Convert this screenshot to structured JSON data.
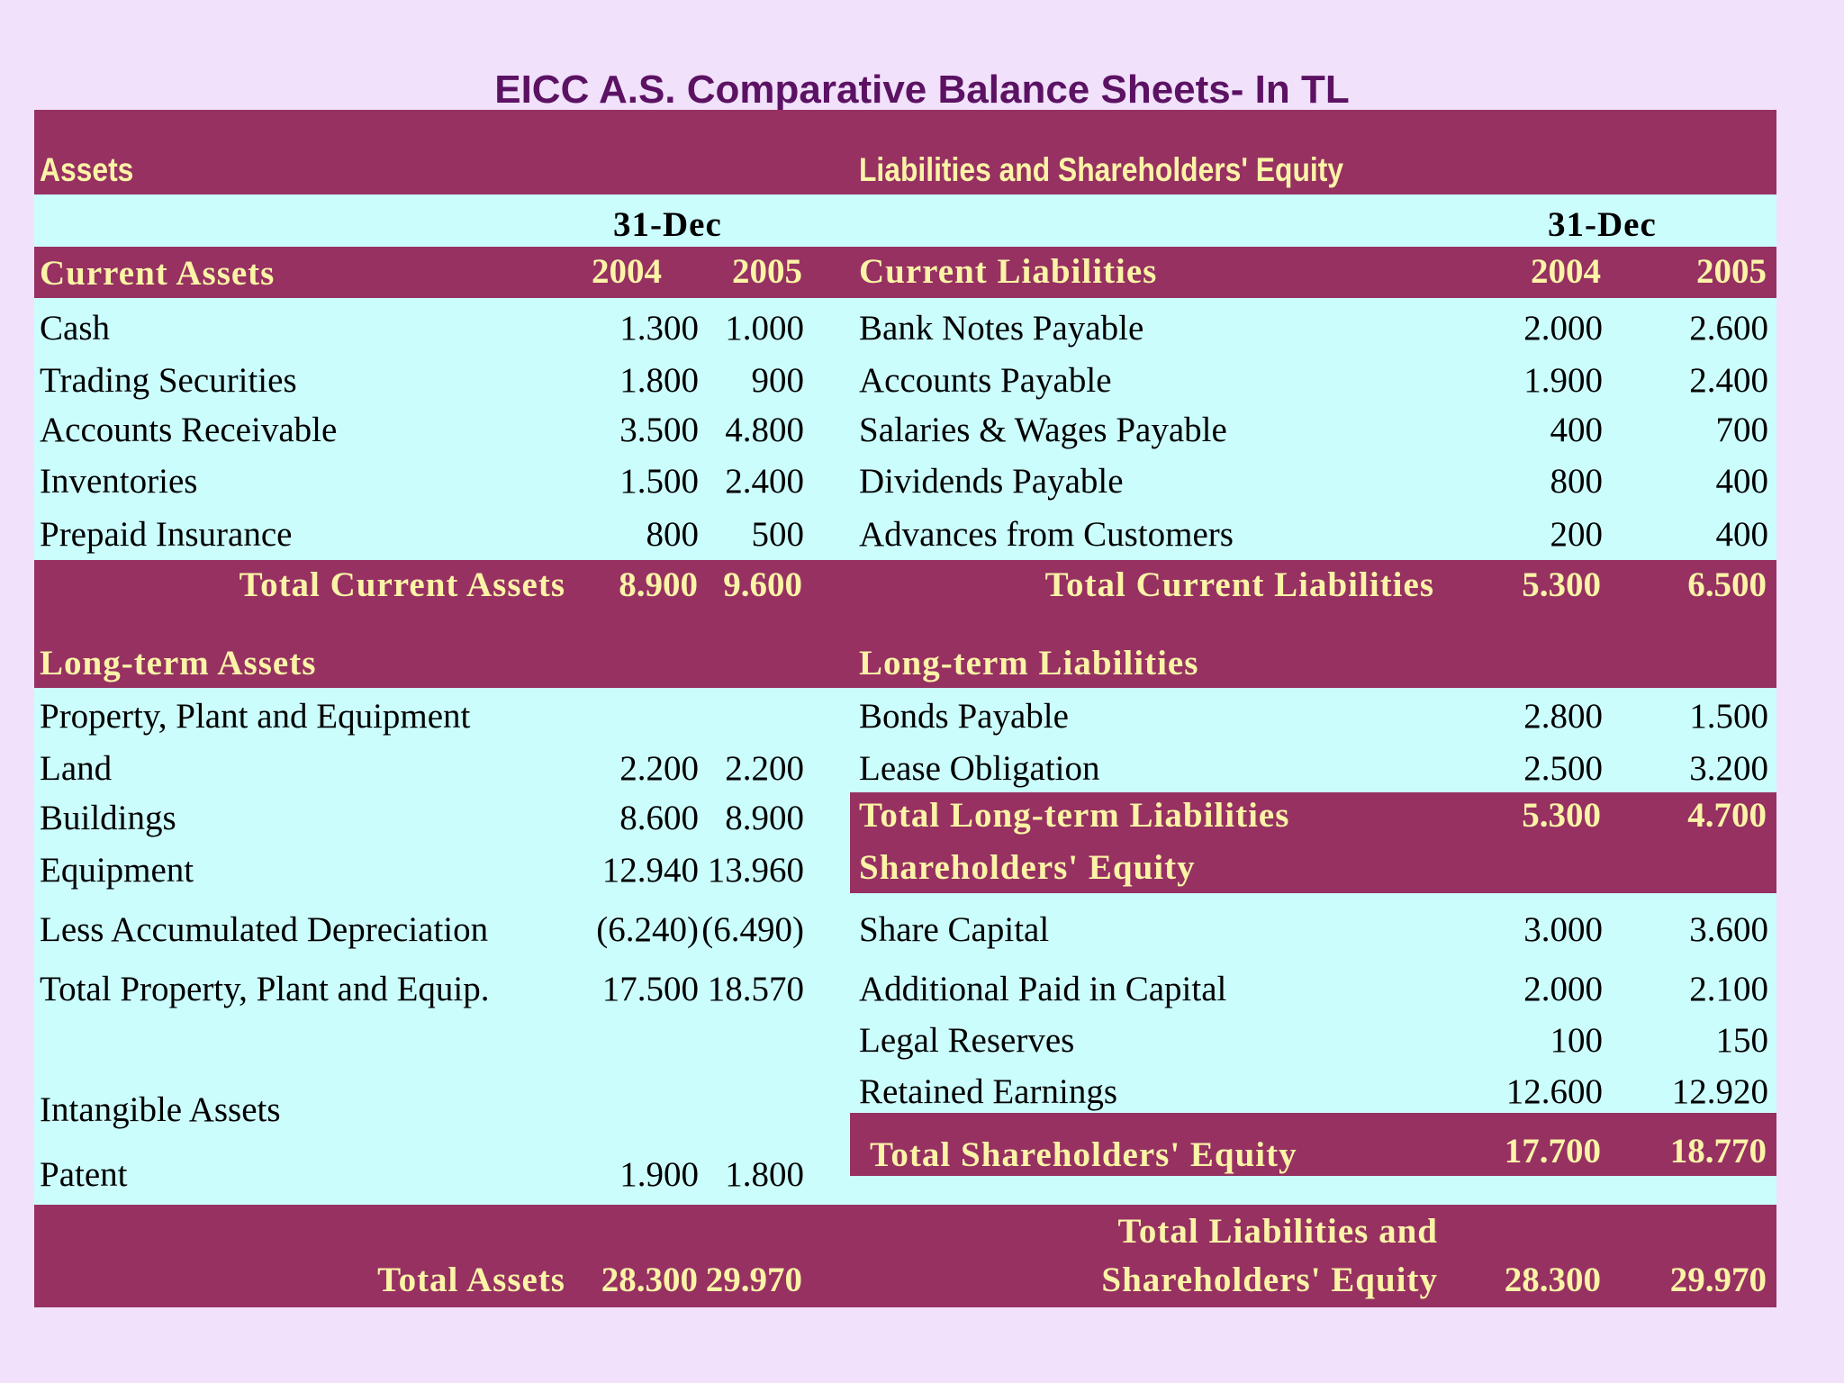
{
  "title": "EICC A.S. Comparative Balance Sheets- In TL",
  "headers": {
    "assets": "Assets",
    "liabilities_equity": "Liabilities and Shareholders' Equity",
    "date_left": "31-Dec",
    "date_right": "31-Dec"
  },
  "years": {
    "y1": "2004",
    "y2": "2005"
  },
  "current_assets": {
    "heading": "Current Assets",
    "rows": [
      {
        "label": "Cash",
        "y2004": "1.300",
        "y2005": "1.000"
      },
      {
        "label": "Trading Securities",
        "y2004": "1.800",
        "y2005": "900"
      },
      {
        "label": "Accounts Receivable",
        "y2004": "3.500",
        "y2005": "4.800"
      },
      {
        "label": "Inventories",
        "y2004": "1.500",
        "y2005": "2.400"
      },
      {
        "label": "Prepaid Insurance",
        "y2004": "800",
        "y2005": "500"
      }
    ],
    "total": {
      "label": "Total Current Assets",
      "y2004": "8.900",
      "y2005": "9.600"
    }
  },
  "current_liabilities": {
    "heading": "Current Liabilities",
    "rows": [
      {
        "label": "Bank Notes Payable",
        "y2004": "2.000",
        "y2005": "2.600"
      },
      {
        "label": "Accounts Payable",
        "y2004": "1.900",
        "y2005": "2.400"
      },
      {
        "label": "Salaries & Wages Payable",
        "y2004": "400",
        "y2005": "700"
      },
      {
        "label": "Dividends Payable",
        "y2004": "800",
        "y2005": "400"
      },
      {
        "label": "Advances from Customers",
        "y2004": "200",
        "y2005": "400"
      }
    ],
    "total": {
      "label": "Total Current Liabilities",
      "y2004": "5.300",
      "y2005": "6.500"
    }
  },
  "long_term_assets": {
    "heading": "Long-term Assets",
    "ppe_label": "Property, Plant and Equipment",
    "rows": [
      {
        "label": "Land",
        "y2004": "2.200",
        "y2005": "2.200"
      },
      {
        "label": "Buildings",
        "y2004": "8.600",
        "y2005": "8.900"
      },
      {
        "label": "Equipment",
        "y2004": "12.940",
        "y2005": "13.960"
      },
      {
        "label": "Less Accumulated Depreciation",
        "y2004": "(6.240)",
        "y2005": "(6.490)"
      },
      {
        "label": "Total Property, Plant and Equip.",
        "y2004": "17.500",
        "y2005": "18.570"
      }
    ],
    "intangible_label": "Intangible Assets",
    "patent": {
      "label": "Patent",
      "y2004": "1.900",
      "y2005": "1.800"
    }
  },
  "long_term_liabilities": {
    "heading": "Long-term Liabilities",
    "rows": [
      {
        "label": "Bonds Payable",
        "y2004": "2.800",
        "y2005": "1.500"
      },
      {
        "label": "Lease Obligation",
        "y2004": "2.500",
        "y2005": "3.200"
      }
    ],
    "total": {
      "label": "Total Long-term Liabilities",
      "y2004": "5.300",
      "y2005": "4.700"
    }
  },
  "equity": {
    "heading": "Shareholders' Equity",
    "rows": [
      {
        "label": "Share Capital",
        "y2004": "3.000",
        "y2005": "3.600"
      },
      {
        "label": "Additional Paid in Capital",
        "y2004": "2.000",
        "y2005": "2.100"
      },
      {
        "label": "Legal Reserves",
        "y2004": "100",
        "y2005": "150"
      },
      {
        "label": "Retained Earnings",
        "y2004": "12.600",
        "y2005": "12.920"
      }
    ],
    "total": {
      "label": "Total Shareholders' Equity",
      "y2004": "17.700",
      "y2005": "18.770"
    }
  },
  "grand_totals": {
    "assets": {
      "label": "Total Assets",
      "y2004": "28.300",
      "y2005": "29.970"
    },
    "liabilities_equity": {
      "label_line1": "Total Liabilities and",
      "label_line2": "Shareholders' Equity",
      "y2004": "28.300",
      "y2005": "29.970"
    }
  }
}
